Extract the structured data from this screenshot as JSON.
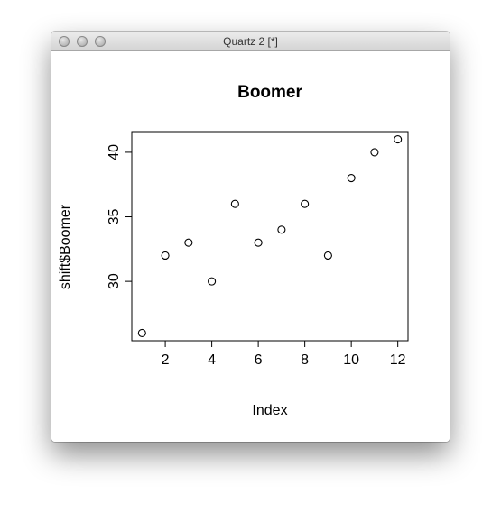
{
  "window": {
    "title": "Quartz 2 [*]"
  },
  "chart_data": {
    "type": "scatter",
    "title": "Boomer",
    "xlabel": "Index",
    "ylabel": "shift$Boomer",
    "x": [
      1,
      2,
      3,
      4,
      5,
      6,
      7,
      8,
      9,
      10,
      11,
      12
    ],
    "y": [
      26,
      32,
      33,
      30,
      36,
      33,
      34,
      36,
      32,
      38,
      40,
      41
    ],
    "xlim": [
      0.56,
      12.44
    ],
    "ylim": [
      25.4,
      41.6
    ],
    "xticks": [
      2,
      4,
      6,
      8,
      10,
      12
    ],
    "yticks": [
      30,
      35,
      40
    ],
    "grid": false,
    "marker": "open-circle"
  }
}
